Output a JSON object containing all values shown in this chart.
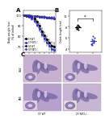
{
  "panel_a": {
    "xlabel": "Treatment (d)",
    "ylabel": "Body weight loss\n(% of initial)",
    "days": [
      0,
      1,
      2,
      3,
      4,
      5,
      6,
      7,
      8,
      9,
      10,
      11,
      12
    ],
    "groups": [
      {
        "label": "CF WT",
        "color": "#000000",
        "linestyle": "-",
        "marker": "s",
        "values": [
          100,
          99.5,
          99,
          98.5,
          97,
          94,
          90,
          85,
          81,
          77,
          74,
          71,
          70
        ],
        "errors": [
          0.3,
          0.5,
          0.8,
          1.0,
          1.3,
          1.8,
          2.2,
          2.5,
          2.8,
          3.0,
          3.2,
          3.5,
          3.8
        ]
      },
      {
        "label": "CF RIP2-/-",
        "color": "#3333cc",
        "linestyle": "-",
        "marker": "s",
        "values": [
          100,
          99.5,
          98.5,
          97,
          95,
          91,
          87,
          82,
          78,
          74,
          71,
          68,
          67
        ],
        "errors": [
          0.3,
          0.6,
          0.9,
          1.2,
          1.6,
          2.0,
          2.4,
          2.8,
          3.0,
          3.3,
          3.6,
          3.9,
          4.0
        ]
      },
      {
        "label": "GF WT",
        "color": "#000000",
        "linestyle": "--",
        "marker": "o",
        "values": [
          100,
          100,
          99.8,
          99.5,
          99.2,
          99,
          98.8,
          98.5,
          98.2,
          98,
          97.8,
          97.5,
          97.2
        ],
        "errors": [
          0.2,
          0.3,
          0.4,
          0.5,
          0.5,
          0.6,
          0.7,
          0.7,
          0.8,
          0.9,
          1.0,
          1.0,
          1.1
        ]
      },
      {
        "label": "GF RIP2-/-",
        "color": "#3333cc",
        "linestyle": "--",
        "marker": "o",
        "values": [
          100,
          100,
          99.8,
          99.5,
          99.2,
          99,
          98.8,
          98.5,
          98.2,
          98,
          97.8,
          97.5,
          97.2
        ],
        "errors": [
          0.2,
          0.3,
          0.4,
          0.5,
          0.5,
          0.6,
          0.7,
          0.7,
          0.8,
          0.9,
          1.0,
          1.0,
          1.1
        ]
      }
    ],
    "ylim": [
      65,
      105
    ],
    "yticks": [
      70,
      80,
      90,
      100
    ],
    "xticks": [
      0,
      2,
      4,
      6,
      8,
      10,
      12
    ]
  },
  "panel_b": {
    "ylabel": "Colon length (cm)",
    "groups": [
      {
        "label": "CF WT",
        "color": "#000000",
        "x": 0,
        "points": [
          7.8,
          8.1,
          7.5,
          8.3,
          7.6,
          8.0,
          7.9,
          8.2
        ]
      },
      {
        "label": "CF RIP2-/-",
        "color": "#3333cc",
        "x": 1,
        "points": [
          5.2,
          5.6,
          4.9,
          6.1,
          5.4,
          5.8,
          5.0,
          5.5,
          4.7,
          6.3
        ]
      }
    ],
    "ylim": [
      3.5,
      11
    ],
    "yticks": [
      4,
      6,
      8,
      10
    ],
    "sig_y": 9.5,
    "sig_label": "*"
  },
  "panel_c": {
    "row_labels": [
      "H&E",
      "PAS"
    ],
    "col_labels": [
      "CF WT",
      "CF RIP2-/-"
    ],
    "tissue_colors": [
      [
        "#c8b0d0",
        "#d0bcd8"
      ],
      [
        "#b8a0cc",
        "#c8b4d4"
      ]
    ],
    "inset_colors": [
      [
        "#d4bcd4",
        "#dcc8dc"
      ],
      [
        "#e8d0e8",
        "#f0dce8"
      ]
    ],
    "border_color": "#aaaaaa"
  },
  "figure_bg": "#ffffff"
}
